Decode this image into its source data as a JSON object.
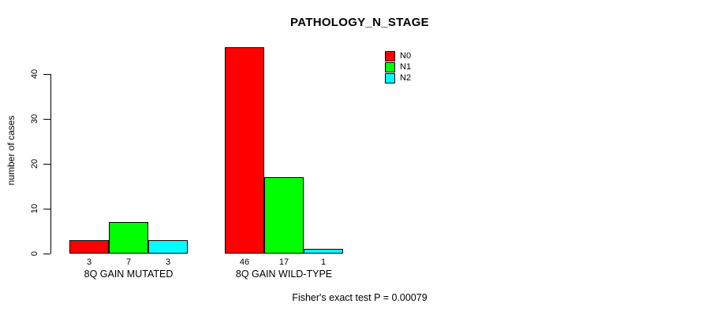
{
  "chart_data": {
    "type": "bar",
    "title": "PATHOLOGY_N_STAGE",
    "ylabel": "number of cases",
    "xlabel": "",
    "ylim": [
      0,
      40
    ],
    "yticks": [
      0,
      10,
      20,
      30,
      40
    ],
    "grid": false,
    "legend_position": "top-right",
    "categories": [
      "8Q GAIN MUTATED",
      "8Q GAIN WILD-TYPE"
    ],
    "series": [
      {
        "name": "N0",
        "color": "#ff0000",
        "values": [
          3,
          46
        ]
      },
      {
        "name": "N1",
        "color": "#00ff00",
        "values": [
          7,
          17
        ]
      },
      {
        "name": "N2",
        "color": "#00ffff",
        "values": [
          3,
          1
        ]
      }
    ],
    "bar_value_labels": [
      [
        "3",
        "7",
        "3"
      ],
      [
        "46",
        "17",
        "1"
      ]
    ],
    "annotation": "Fisher's exact test P = 0.00079",
    "colors": {
      "background": "#ffffff",
      "axis": "#000000",
      "text": "#000000"
    }
  }
}
